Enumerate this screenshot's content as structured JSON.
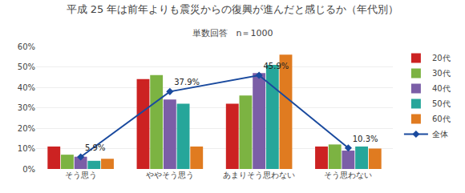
{
  "chart_data": {
    "type": "bar",
    "title": "平成 25 年は前年よりも震災からの復興が進んだと感じるか（年代別）",
    "subtitle": "単数回答　n＝1000",
    "categories": [
      "そう思う",
      "ややそう思う",
      "あまりそう思わない",
      "そう思わない"
    ],
    "series": [
      {
        "name": "20代",
        "type": "bar",
        "color": "#cc2222",
        "values": [
          11,
          44,
          32,
          11
        ]
      },
      {
        "name": "30代",
        "type": "bar",
        "color": "#7cb342",
        "values": [
          7,
          46,
          36,
          12
        ]
      },
      {
        "name": "40代",
        "type": "bar",
        "color": "#7b5ea7",
        "values": [
          6,
          34,
          47,
          9
        ]
      },
      {
        "name": "50代",
        "type": "bar",
        "color": "#26a69a",
        "values": [
          4,
          32,
          51,
          11
        ]
      },
      {
        "name": "60代",
        "type": "bar",
        "color": "#e07b20",
        "values": [
          5,
          11,
          56,
          10
        ]
      },
      {
        "name": "全体",
        "type": "line",
        "color": "#1a4a9e",
        "marker": "diamond",
        "values": [
          5.9,
          37.9,
          45.9,
          10.3
        ],
        "data_labels": true,
        "value_labels": [
          "5.9%",
          "37.9%",
          "45.9%",
          "10.3%"
        ]
      }
    ],
    "ylim": [
      0,
      60
    ],
    "yticks": [
      {
        "value": 0,
        "label": "0%"
      },
      {
        "value": 10,
        "label": "10%"
      },
      {
        "value": 20,
        "label": "20%"
      },
      {
        "value": 30,
        "label": "30%"
      },
      {
        "value": 40,
        "label": "40%"
      },
      {
        "value": 50,
        "label": "50%"
      },
      {
        "value": 60,
        "label": "60%"
      }
    ],
    "grid": true,
    "legend": "right"
  }
}
